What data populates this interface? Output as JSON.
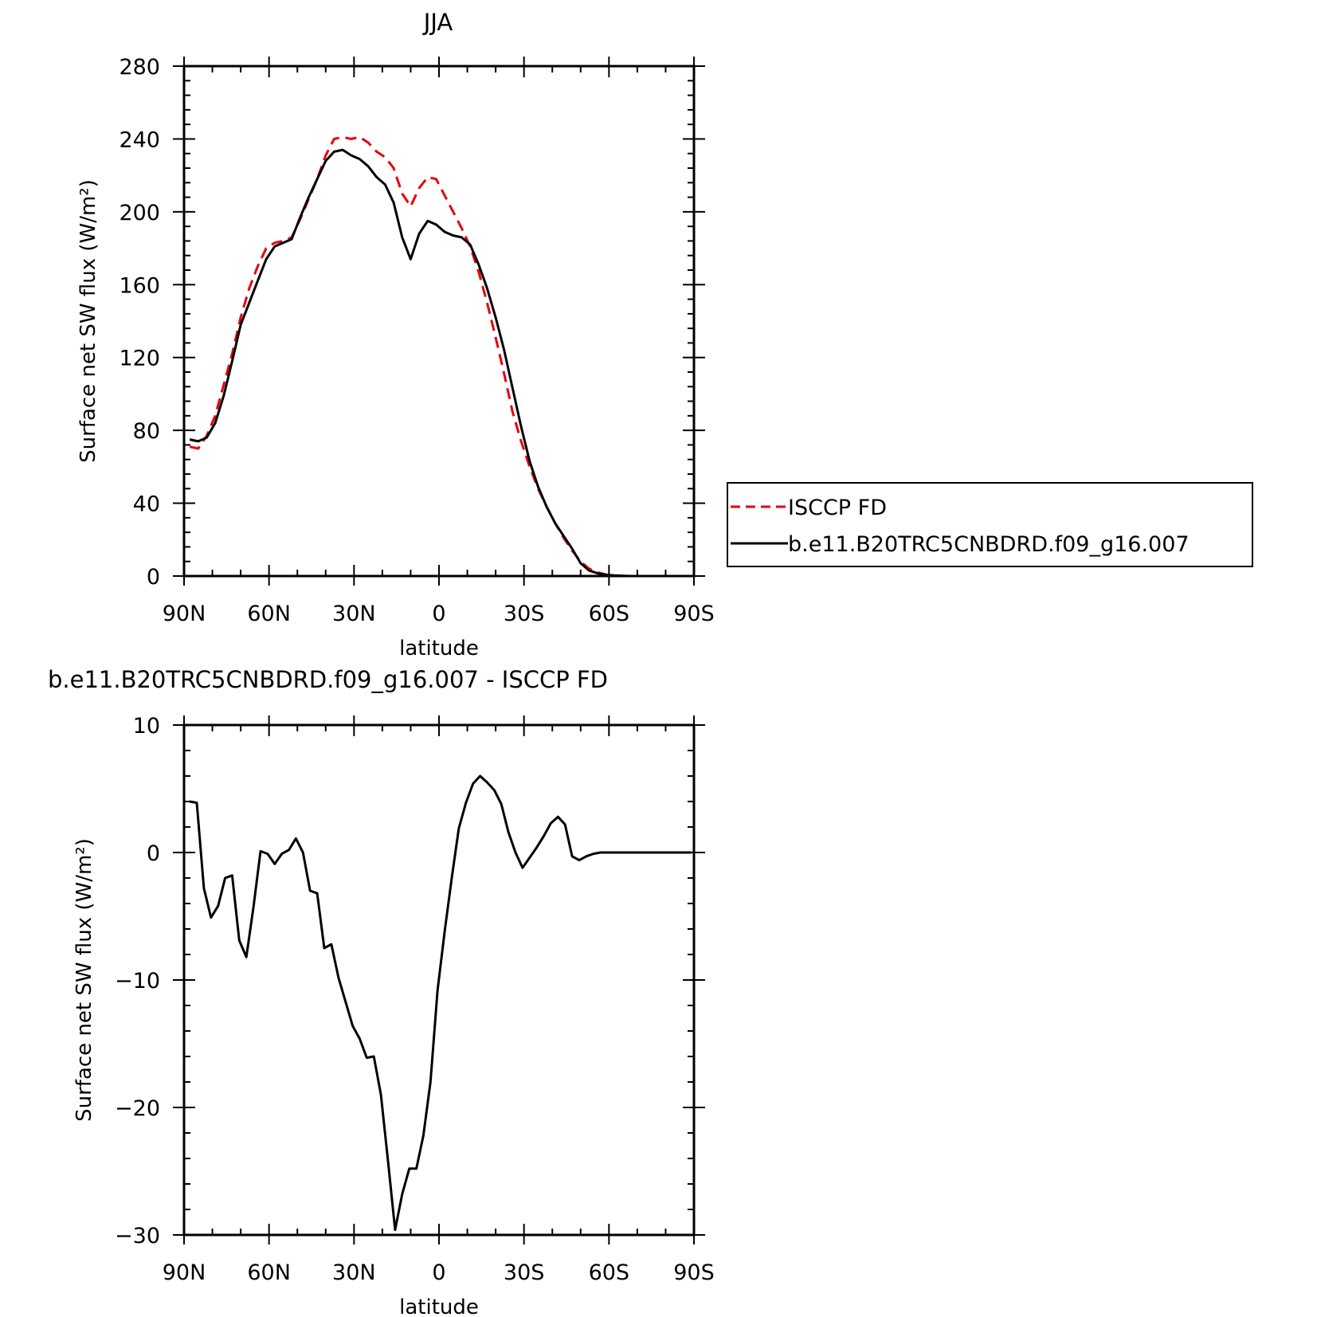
{
  "chart_data": [
    {
      "type": "line",
      "title": "JJA",
      "xlabel": "latitude",
      "ylabel": "Surface net SW flux (W/m²)",
      "xlim": [
        90,
        -90
      ],
      "ylim": [
        0,
        280
      ],
      "xticks": [
        90,
        60,
        30,
        0,
        -30,
        -60,
        -90
      ],
      "xtick_labels": [
        "90N",
        "60N",
        "30N",
        "0",
        "30S",
        "60S",
        "90S"
      ],
      "yticks": [
        0,
        40,
        80,
        120,
        160,
        200,
        240,
        280
      ],
      "ytick_labels": [
        "0",
        "40",
        "80",
        "120",
        "160",
        "200",
        "240",
        "280"
      ],
      "grid": false,
      "legend_position": "right",
      "x": [
        88,
        85,
        82,
        79,
        76,
        73,
        70,
        67,
        64,
        61,
        58,
        55,
        52,
        49,
        46,
        43,
        40,
        37,
        34,
        31,
        28,
        25,
        22,
        19,
        16,
        13,
        10,
        7,
        4,
        1,
        -2,
        -5,
        -8,
        -11,
        -14,
        -17,
        -20,
        -23,
        -26,
        -29,
        -32,
        -35,
        -38,
        -41,
        -44,
        -47,
        -50,
        -53,
        -56,
        -59,
        -62,
        -65,
        -68,
        -71,
        -74,
        -77,
        -80,
        -83,
        -86,
        -89
      ],
      "series": [
        {
          "name": "ISCCP FD",
          "color": "#e8000b",
          "dash": "dashed",
          "values": [
            71,
            70,
            77,
            88,
            105,
            122,
            142,
            158,
            170,
            180,
            183,
            184,
            186,
            196,
            207,
            218,
            231,
            240,
            241,
            240,
            241,
            238,
            233,
            230,
            224,
            210,
            203,
            213,
            219,
            218,
            209,
            200,
            191,
            181,
            167,
            150,
            131,
            111,
            90,
            74,
            60,
            48,
            38,
            29,
            21,
            14,
            8,
            4,
            2,
            0.8,
            0.3,
            0.1,
            0,
            0,
            0,
            0,
            0,
            0,
            0,
            0
          ]
        },
        {
          "name": "b.e11.B20TRC5CNBDRD.f09_g16.007",
          "color": "#000000",
          "dash": "solid",
          "values": [
            75,
            74,
            76,
            84,
            99,
            118,
            138,
            150,
            162,
            174,
            181,
            183,
            185,
            197,
            208,
            218,
            228,
            233,
            234,
            231,
            229,
            225,
            219,
            215,
            205,
            186,
            174,
            188,
            195,
            193,
            189,
            187,
            186,
            182,
            171,
            158,
            142,
            124,
            103,
            82,
            63,
            49,
            38,
            29,
            22,
            15,
            7,
            3,
            1.5,
            0.7,
            0.3,
            0.1,
            0,
            0,
            0,
            0,
            0,
            0,
            0,
            0
          ]
        }
      ]
    },
    {
      "type": "line",
      "title": "b.e11.B20TRC5CNBDRD.f09_g16.007 - ISCCP FD",
      "xlabel": "latitude",
      "ylabel": "Surface net SW flux (W/m²)",
      "xlim": [
        90,
        -90
      ],
      "ylim": [
        -30,
        10
      ],
      "xticks": [
        90,
        60,
        30,
        0,
        -30,
        -60,
        -90
      ],
      "xtick_labels": [
        "90N",
        "60N",
        "30N",
        "0",
        "30S",
        "60S",
        "90S"
      ],
      "yticks": [
        -30,
        -20,
        -10,
        0,
        10
      ],
      "ytick_labels": [
        "−30",
        "−20",
        "−10",
        "0",
        "10"
      ],
      "grid": false,
      "x": [
        88,
        85.5,
        83,
        80.5,
        78,
        75.5,
        73,
        70.5,
        68,
        65.5,
        63,
        60.5,
        58,
        55.5,
        53,
        50.5,
        48,
        45.5,
        43,
        40.5,
        38,
        35.5,
        33,
        30.5,
        28,
        25.5,
        23,
        20.5,
        18,
        15.5,
        13,
        10.5,
        8,
        5.5,
        3,
        0.5,
        -2,
        -4.5,
        -7,
        -9.5,
        -12,
        -14.5,
        -17,
        -19.5,
        -22,
        -24.5,
        -27,
        -29.5,
        -32,
        -34.5,
        -37,
        -39.5,
        -42,
        -44.5,
        -47,
        -49.5,
        -52,
        -54.5,
        -57,
        -59.5,
        -62,
        -64.5,
        -67,
        -69.5,
        -72,
        -74.5,
        -77,
        -79.5,
        -82,
        -84.5,
        -87,
        -89
      ],
      "series": [
        {
          "name": "",
          "color": "#000000",
          "values": [
            4.0,
            3.9,
            -2.8,
            -5.1,
            -4.2,
            -2.0,
            -1.8,
            -6.9,
            -8.2,
            -4.3,
            0.1,
            -0.1,
            -0.9,
            -0.1,
            0.2,
            1.1,
            0.0,
            -3.0,
            -3.2,
            -7.5,
            -7.2,
            -9.8,
            -11.7,
            -13.6,
            -14.6,
            -16.1,
            -16.0,
            -19.0,
            -24.2,
            -29.6,
            -26.8,
            -24.8,
            -24.8,
            -22.2,
            -18.0,
            -10.8,
            -6.2,
            -2.0,
            1.9,
            3.9,
            5.4,
            6.0,
            5.5,
            4.9,
            3.8,
            1.6,
            0.0,
            -1.2,
            -0.4,
            0.4,
            1.3,
            2.3,
            2.8,
            2.2,
            -0.3,
            -0.6,
            -0.3,
            -0.1,
            0.0,
            0.0,
            0.0,
            0.0,
            0.0,
            0.0,
            0.0,
            0.0,
            0.0,
            0.0,
            0.0,
            0.0,
            0.0,
            0.0
          ]
        }
      ]
    }
  ]
}
